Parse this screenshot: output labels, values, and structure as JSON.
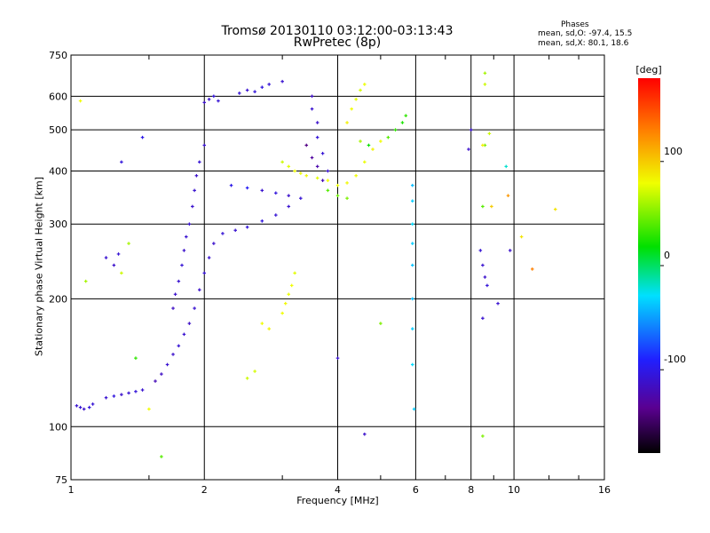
{
  "chart_data": {
    "type": "scatter",
    "title": "Tromsø 20130110 03:12:00-03:13:43",
    "subtitle": "RwPretec (8p)",
    "xlabel": "Frequency [MHz]",
    "ylabel": "Stationary phase Virtual Height [km]",
    "x_scale": "log",
    "y_scale": "log",
    "xlim": [
      1,
      16
    ],
    "ylim": [
      75,
      750
    ],
    "x_ticks": [
      1,
      2,
      4,
      6,
      8,
      10,
      16
    ],
    "x_tick_labels": [
      "1",
      "2",
      "4",
      "6",
      "8",
      "10",
      "16"
    ],
    "y_ticks": [
      75,
      100,
      200,
      300,
      400,
      500,
      600,
      750
    ],
    "y_tick_labels": [
      "75",
      "100",
      "200",
      "300",
      "400",
      "500",
      "600",
      "750"
    ],
    "grid": true,
    "phases": {
      "title": "Phases",
      "o_label": "mean, sd,O: -97.4, 15.5",
      "x_label": "mean, sd,X: 80.1, 18.6"
    },
    "colorbar": {
      "title": "[deg]",
      "ticks": [
        100,
        0,
        -100
      ],
      "tick_labels": [
        "100",
        "0",
        "-100"
      ],
      "range": [
        -180,
        180
      ],
      "colormap": "rainbow"
    },
    "series": [
      {
        "marker": "plus",
        "points": [
          [
            1.03,
            112,
            -110
          ],
          [
            1.05,
            111,
            -108
          ],
          [
            1.07,
            110,
            -112
          ],
          [
            1.1,
            111,
            -105
          ],
          [
            1.12,
            113,
            -108
          ],
          [
            1.2,
            117,
            -110
          ],
          [
            1.25,
            118,
            -104
          ],
          [
            1.3,
            119,
            -112
          ],
          [
            1.35,
            120,
            -109
          ],
          [
            1.4,
            121,
            -106
          ],
          [
            1.45,
            122,
            -110
          ],
          [
            1.55,
            128,
            -120
          ],
          [
            1.6,
            133,
            -115
          ],
          [
            1.65,
            140,
            -110
          ],
          [
            1.7,
            148,
            -112
          ],
          [
            1.75,
            155,
            -108
          ],
          [
            1.8,
            165,
            -110
          ],
          [
            1.85,
            175,
            -114
          ],
          [
            1.9,
            190,
            -110
          ],
          [
            1.95,
            210,
            -112
          ],
          [
            2.0,
            230,
            -108
          ],
          [
            2.05,
            250,
            -110
          ],
          [
            2.1,
            270,
            -112
          ],
          [
            2.2,
            285,
            -108
          ],
          [
            2.35,
            290,
            -110
          ],
          [
            2.5,
            295,
            -106
          ],
          [
            2.7,
            305,
            -104
          ],
          [
            2.9,
            315,
            -108
          ],
          [
            3.1,
            330,
            -110
          ],
          [
            1.7,
            190,
            -115
          ],
          [
            1.72,
            205,
            -112
          ],
          [
            1.75,
            220,
            -110
          ],
          [
            1.78,
            240,
            -108
          ],
          [
            1.8,
            260,
            -112
          ],
          [
            1.82,
            280,
            -110
          ],
          [
            1.85,
            300,
            -109
          ],
          [
            1.88,
            330,
            -111
          ],
          [
            1.9,
            360,
            -110
          ],
          [
            1.92,
            390,
            -112
          ],
          [
            1.95,
            420,
            -108
          ],
          [
            2.0,
            460,
            -110
          ],
          [
            2.0,
            580,
            -112
          ],
          [
            2.05,
            590,
            -110
          ],
          [
            2.1,
            600,
            -106
          ],
          [
            2.15,
            585,
            -108
          ],
          [
            2.4,
            610,
            -108
          ],
          [
            2.5,
            620,
            -110
          ],
          [
            2.6,
            615,
            -106
          ],
          [
            2.7,
            630,
            -104
          ],
          [
            2.8,
            640,
            -108
          ],
          [
            3.0,
            650,
            -110
          ],
          [
            2.3,
            370,
            -100
          ],
          [
            2.5,
            365,
            -95
          ],
          [
            2.7,
            360,
            -110
          ],
          [
            2.9,
            355,
            -105
          ],
          [
            3.1,
            350,
            -112
          ],
          [
            3.3,
            345,
            -108
          ],
          [
            3.5,
            600,
            -115
          ],
          [
            3.5,
            560,
            -110
          ],
          [
            3.6,
            520,
            -112
          ],
          [
            3.6,
            480,
            -106
          ],
          [
            3.7,
            440,
            -108
          ],
          [
            3.8,
            400,
            -110
          ],
          [
            3.4,
            460,
            -140
          ],
          [
            3.5,
            430,
            -130
          ],
          [
            3.6,
            410,
            -125
          ],
          [
            3.7,
            380,
            -120
          ],
          [
            3.0,
            420,
            70
          ],
          [
            3.1,
            410,
            75
          ],
          [
            3.2,
            400,
            80
          ],
          [
            3.3,
            395,
            78
          ],
          [
            3.4,
            390,
            82
          ],
          [
            3.6,
            385,
            76
          ],
          [
            3.8,
            380,
            80
          ],
          [
            4.0,
            370,
            78
          ],
          [
            4.2,
            375,
            82
          ],
          [
            4.4,
            390,
            80
          ],
          [
            4.6,
            420,
            78
          ],
          [
            4.8,
            450,
            84
          ],
          [
            5.0,
            470,
            80
          ],
          [
            4.2,
            520,
            85
          ],
          [
            4.3,
            560,
            80
          ],
          [
            4.4,
            590,
            76
          ],
          [
            4.5,
            620,
            72
          ],
          [
            4.6,
            640,
            78
          ],
          [
            3.8,
            360,
            40
          ],
          [
            4.0,
            350,
            45
          ],
          [
            4.2,
            345,
            50
          ],
          [
            4.5,
            470,
            60
          ],
          [
            4.7,
            460,
            20
          ],
          [
            5.2,
            480,
            40
          ],
          [
            5.4,
            500,
            30
          ],
          [
            5.6,
            520,
            25
          ],
          [
            5.7,
            540,
            30
          ],
          [
            3.0,
            185,
            80
          ],
          [
            3.05,
            195,
            82
          ],
          [
            3.1,
            205,
            78
          ],
          [
            3.15,
            215,
            80
          ],
          [
            3.2,
            230,
            76
          ],
          [
            2.7,
            175,
            80
          ],
          [
            2.8,
            170,
            84
          ],
          [
            2.5,
            130,
            70
          ],
          [
            2.6,
            135,
            72
          ],
          [
            1.5,
            110,
            80
          ],
          [
            1.6,
            85,
            40
          ],
          [
            1.4,
            145,
            30
          ],
          [
            1.3,
            230,
            70
          ],
          [
            1.35,
            270,
            60
          ],
          [
            1.2,
            250,
            -110
          ],
          [
            1.25,
            240,
            -112
          ],
          [
            1.28,
            255,
            -108
          ],
          [
            1.45,
            480,
            -100
          ],
          [
            1.3,
            420,
            -105
          ],
          [
            1.05,
            585,
            80
          ],
          [
            1.08,
            220,
            60
          ],
          [
            4.0,
            145,
            -110
          ],
          [
            4.6,
            96,
            -112
          ],
          [
            5.0,
            175,
            50
          ],
          [
            5.9,
            370,
            -40
          ],
          [
            5.9,
            340,
            -35
          ],
          [
            5.9,
            300,
            -30
          ],
          [
            5.9,
            270,
            -35
          ],
          [
            5.9,
            240,
            -38
          ],
          [
            5.9,
            200,
            -40
          ],
          [
            5.9,
            170,
            -35
          ],
          [
            5.9,
            140,
            -30
          ],
          [
            5.95,
            110,
            -35
          ],
          [
            8.0,
            500,
            -110
          ],
          [
            7.9,
            450,
            -112
          ],
          [
            8.6,
            680,
            60
          ],
          [
            8.6,
            640,
            70
          ],
          [
            8.5,
            330,
            40
          ],
          [
            8.4,
            260,
            -108
          ],
          [
            8.5,
            240,
            -110
          ],
          [
            8.6,
            225,
            -112
          ],
          [
            8.7,
            215,
            -106
          ],
          [
            8.5,
            180,
            -110
          ],
          [
            8.6,
            460,
            50
          ],
          [
            8.8,
            490,
            70
          ],
          [
            8.5,
            95,
            50
          ],
          [
            9.2,
            195,
            -110
          ],
          [
            9.6,
            410,
            -20
          ],
          [
            9.7,
            350,
            120
          ],
          [
            9.8,
            260,
            -112
          ],
          [
            10.4,
            280,
            90
          ],
          [
            11.0,
            235,
            130
          ],
          [
            12.4,
            325,
            90
          ],
          [
            8.5,
            460,
            85
          ],
          [
            8.9,
            330,
            100
          ]
        ]
      }
    ]
  }
}
